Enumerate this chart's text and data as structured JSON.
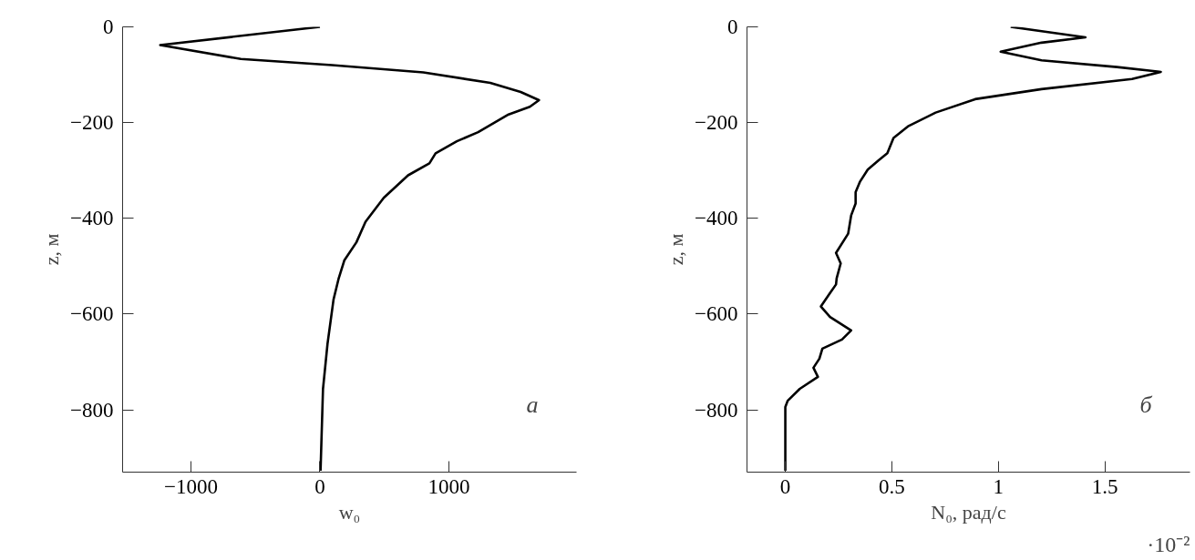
{
  "chart_data": [
    {
      "type": "line",
      "xlabel": "w₀",
      "ylabel": "z, м",
      "color": "#000000",
      "x": [
        0,
        -1238,
        -613,
        94,
        802,
        1321,
        1557,
        1699,
        1628,
        1463,
        1227,
        1062,
        897,
        849,
        684,
        495,
        354,
        283,
        189,
        146,
        106,
        59,
        24,
        5
      ],
      "values": [
        0,
        -38,
        -67,
        -80,
        -95,
        -117,
        -136,
        -153,
        -167,
        -183,
        -220,
        -239,
        -264,
        -285,
        -310,
        -357,
        -407,
        -450,
        -488,
        -525,
        -569,
        -662,
        -756,
        -927
      ],
      "xlim": [
        -1530,
        1990
      ],
      "ylim": [
        -930,
        0
      ],
      "xticks": [
        {
          "value": -1000,
          "label": "−1000"
        },
        0,
        1000
      ],
      "yticks": [
        0,
        {
          "value": -200,
          "label": "−200"
        },
        {
          "value": -400,
          "label": "−400"
        },
        {
          "value": -600,
          "label": "−600"
        },
        {
          "value": -800,
          "label": "−800"
        }
      ],
      "annotations": [
        "a"
      ]
    },
    {
      "type": "line",
      "xlabel": "N₀, рад/с",
      "ylabel": "z, м",
      "color": "#000000",
      "x": [
        1.058,
        1.409,
        1.203,
        1.011,
        1.203,
        1.557,
        1.763,
        1.628,
        1.203,
        0.891,
        0.706,
        0.579,
        0.508,
        0.479,
        0.437,
        0.387,
        0.351,
        0.33,
        0.33,
        0.309,
        0.295,
        0.238,
        0.26,
        0.241,
        0.238,
        0.21,
        0.167,
        0.21,
        0.309,
        0.266,
        0.174,
        0.16,
        0.132,
        0.153,
        0.068,
        0.011,
        0,
        0
      ],
      "values": [
        0,
        -22,
        -33,
        -52,
        -70,
        -84,
        -94,
        -109,
        -130,
        -151,
        -179,
        -207,
        -232,
        -264,
        -279,
        -298,
        -323,
        -345,
        -369,
        -394,
        -432,
        -472,
        -494,
        -525,
        -538,
        -556,
        -584,
        -606,
        -634,
        -653,
        -672,
        -693,
        -712,
        -731,
        -756,
        -781,
        -794,
        -927
      ],
      "xlim": [
        -0.18,
        1.9
      ],
      "ylim": [
        -930,
        0
      ],
      "xticks": [
        0,
        0.5,
        1,
        1.5
      ],
      "yticks": [
        0,
        {
          "value": -200,
          "label": "−200"
        },
        {
          "value": -400,
          "label": "−400"
        },
        {
          "value": -600,
          "label": "−600"
        },
        {
          "value": -800,
          "label": "−800"
        }
      ],
      "annotations": [
        "б",
        "·10⁻²"
      ]
    }
  ]
}
